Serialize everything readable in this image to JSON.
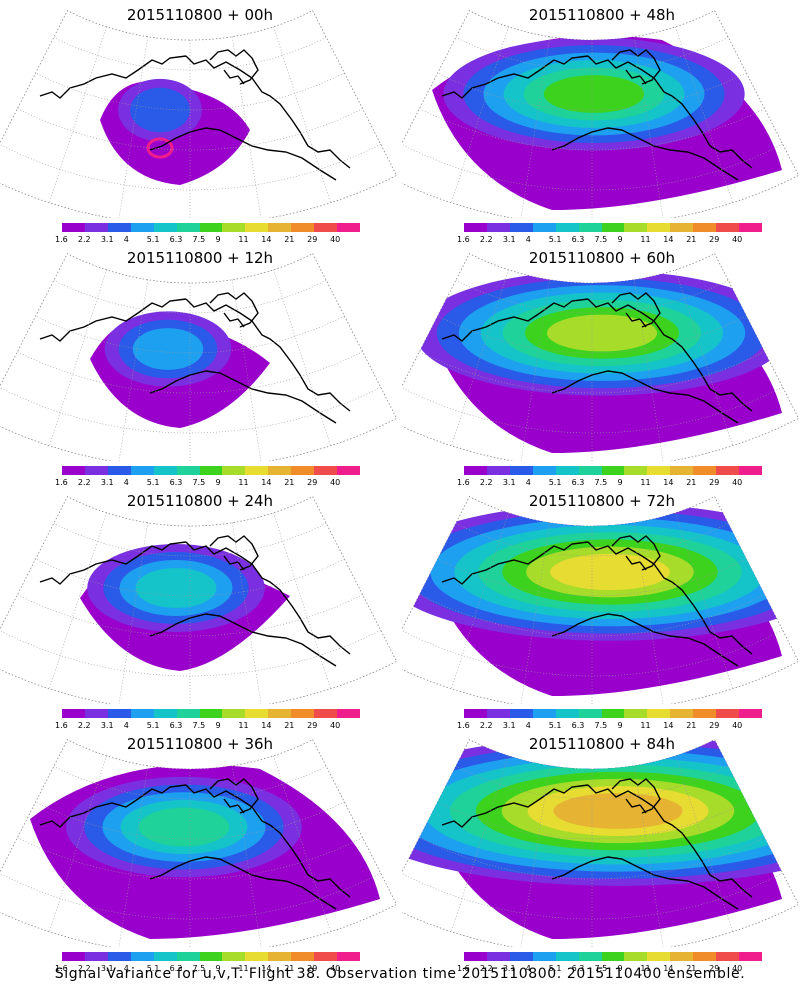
{
  "panels": [
    {
      "title": "2015110800 + 00h",
      "stage": 0
    },
    {
      "title": "2015110800 + 48h",
      "stage": 4
    },
    {
      "title": "2015110800 + 12h",
      "stage": 1
    },
    {
      "title": "2015110800 + 60h",
      "stage": 5
    },
    {
      "title": "2015110800 + 24h",
      "stage": 2
    },
    {
      "title": "2015110800 + 72h",
      "stage": 6
    },
    {
      "title": "2015110800 + 36h",
      "stage": 3
    },
    {
      "title": "2015110800 + 84h",
      "stage": 7
    }
  ],
  "colorbar": {
    "ticks": [
      "1.6",
      "2.2",
      "3.1",
      "4",
      "5.1",
      "6.3",
      "7.5",
      "9",
      "11",
      "14",
      "21",
      "29",
      "40"
    ],
    "colors": [
      "#9900cc",
      "#7a30e0",
      "#2a5ae8",
      "#1ea0f0",
      "#14c4c8",
      "#1ed29a",
      "#3cd21e",
      "#a8dc2a",
      "#e6dc32",
      "#e6b432",
      "#f08c2a",
      "#f04c4c",
      "#f01e8c"
    ]
  },
  "caption": "Signal Variance for u,v,T. Flight 38. Observation time 2015110800. 2015110400 ensemble."
}
